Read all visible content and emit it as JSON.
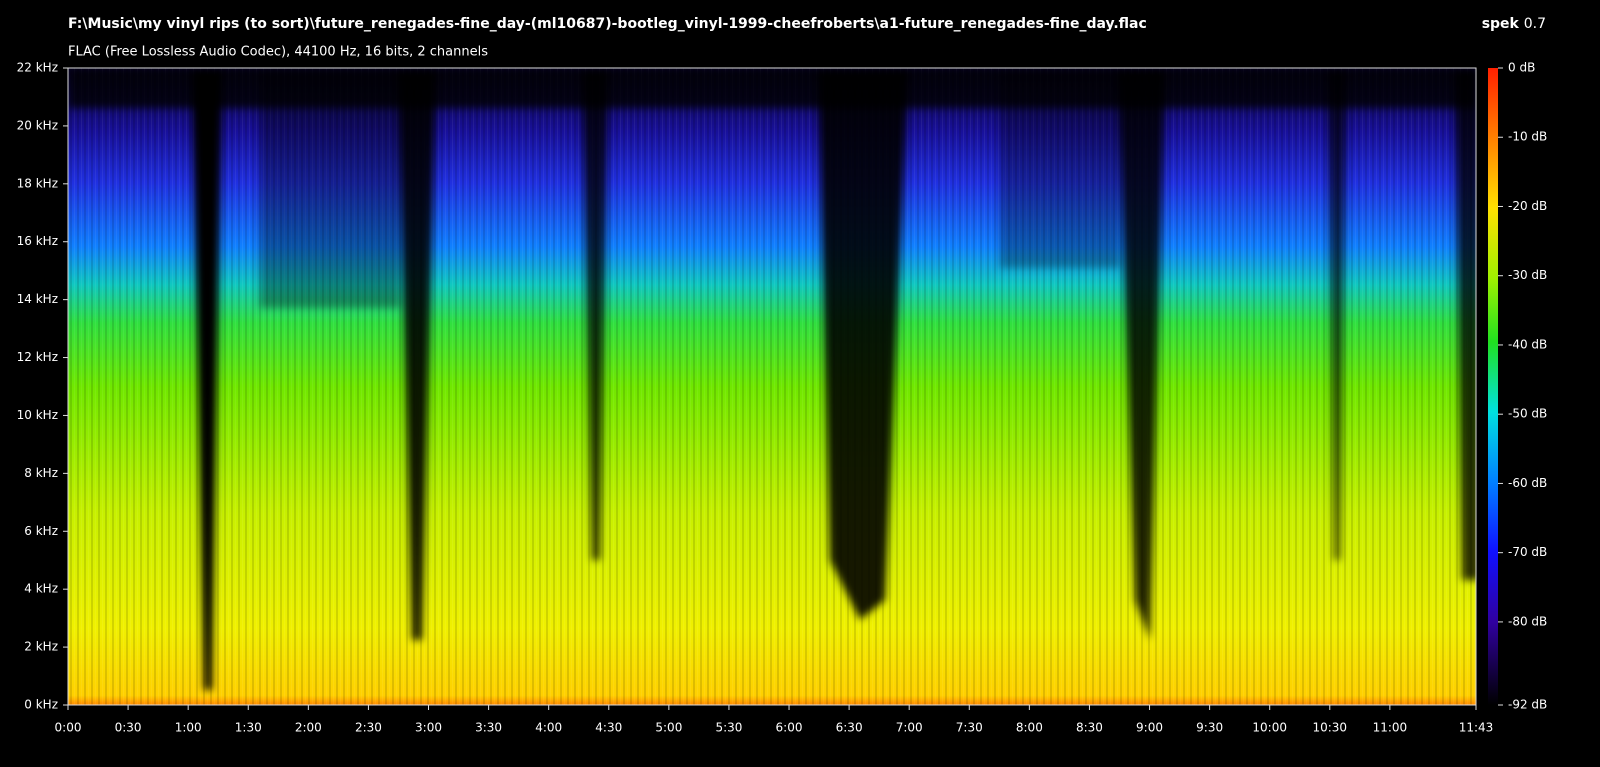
{
  "header": {
    "file_path": "F:\\Music\\my vinyl rips (to sort)\\future_renegades-fine_day-(ml10687)-bootleg_vinyl-1999-cheefroberts\\a1-future_renegades-fine_day.flac",
    "format_info": "FLAC (Free Lossless Audio Codec), 44100 Hz, 16 bits, 2 channels",
    "app_name": "spek",
    "app_version": "0.7"
  },
  "spectrogram": {
    "frequency_ticks": [
      {
        "value": 0,
        "label": "0 kHz"
      },
      {
        "value": 2,
        "label": "2 kHz"
      },
      {
        "value": 4,
        "label": "4 kHz"
      },
      {
        "value": 6,
        "label": "6 kHz"
      },
      {
        "value": 8,
        "label": "8 kHz"
      },
      {
        "value": 10,
        "label": "10 kHz"
      },
      {
        "value": 12,
        "label": "12 kHz"
      },
      {
        "value": 14,
        "label": "14 kHz"
      },
      {
        "value": 16,
        "label": "16 kHz"
      },
      {
        "value": 18,
        "label": "18 kHz"
      },
      {
        "value": 20,
        "label": "20 kHz"
      },
      {
        "value": 22,
        "label": "22 kHz"
      }
    ],
    "time_ticks": [
      {
        "value": 0,
        "label": "0:00"
      },
      {
        "value": 30,
        "label": "0:30"
      },
      {
        "value": 60,
        "label": "1:00"
      },
      {
        "value": 90,
        "label": "1:30"
      },
      {
        "value": 120,
        "label": "2:00"
      },
      {
        "value": 150,
        "label": "2:30"
      },
      {
        "value": 180,
        "label": "3:00"
      },
      {
        "value": 210,
        "label": "3:30"
      },
      {
        "value": 240,
        "label": "4:00"
      },
      {
        "value": 270,
        "label": "4:30"
      },
      {
        "value": 300,
        "label": "5:00"
      },
      {
        "value": 330,
        "label": "5:30"
      },
      {
        "value": 360,
        "label": "6:00"
      },
      {
        "value": 390,
        "label": "6:30"
      },
      {
        "value": 420,
        "label": "7:00"
      },
      {
        "value": 450,
        "label": "7:30"
      },
      {
        "value": 480,
        "label": "8:00"
      },
      {
        "value": 510,
        "label": "8:30"
      },
      {
        "value": 540,
        "label": "9:00"
      },
      {
        "value": 570,
        "label": "9:30"
      },
      {
        "value": 600,
        "label": "10:00"
      },
      {
        "value": 630,
        "label": "10:30"
      },
      {
        "value": 660,
        "label": "11:00"
      },
      {
        "value": 703,
        "label": "11:43"
      }
    ],
    "level_ticks": [
      {
        "value": 0,
        "label": "0 dB"
      },
      {
        "value": -10,
        "label": "-10 dB"
      },
      {
        "value": -20,
        "label": "-20 dB"
      },
      {
        "value": -30,
        "label": "-30 dB"
      },
      {
        "value": -40,
        "label": "-40 dB"
      },
      {
        "value": -50,
        "label": "-50 dB"
      },
      {
        "value": -60,
        "label": "-60 dB"
      },
      {
        "value": -70,
        "label": "-70 dB"
      },
      {
        "value": -80,
        "label": "-80 dB"
      },
      {
        "value": -92,
        "label": "-92 dB"
      }
    ]
  }
}
